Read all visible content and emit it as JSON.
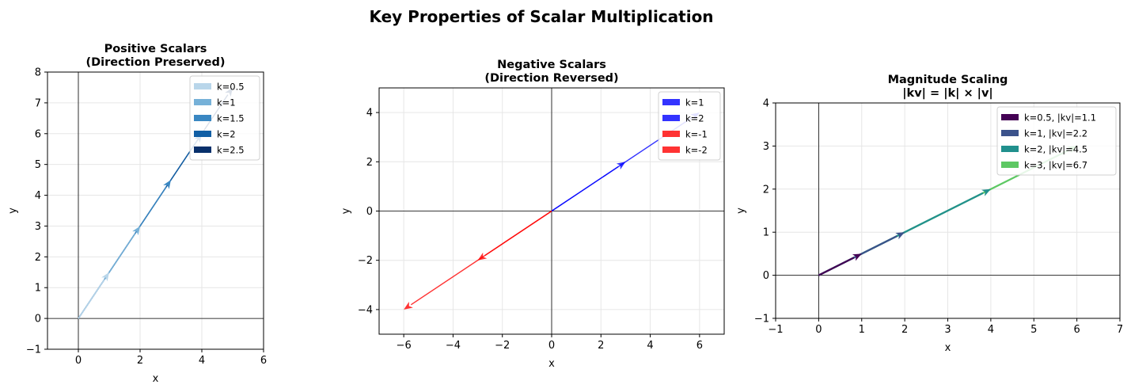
{
  "figure": {
    "title": "Key Properties of Scalar Multiplication"
  },
  "chart_data": [
    {
      "type": "vector",
      "title": "Positive Scalars\n(Direction Preserved)",
      "xlabel": "x",
      "ylabel": "y",
      "xlim": [
        -1,
        6
      ],
      "ylim": [
        -1,
        8
      ],
      "xticks": [
        0,
        2,
        4,
        6
      ],
      "yticks": [
        -1,
        0,
        1,
        2,
        3,
        4,
        5,
        6,
        7,
        8
      ],
      "grid": true,
      "legend": "top-right",
      "axis_lines": true,
      "series": [
        {
          "name": "k=0.5",
          "x": 1,
          "y": 1.5,
          "color": "#b9d6ea",
          "alpha": 1
        },
        {
          "name": "k=1",
          "x": 2,
          "y": 3,
          "color": "#76b1d8",
          "alpha": 1
        },
        {
          "name": "k=1.5",
          "x": 3,
          "y": 4.5,
          "color": "#3a87c2",
          "alpha": 1
        },
        {
          "name": "k=2",
          "x": 4,
          "y": 6,
          "color": "#115fa5",
          "alpha": 1
        },
        {
          "name": "k=2.5",
          "x": 5,
          "y": 7.5,
          "color": "#08306b",
          "alpha": 1
        }
      ]
    },
    {
      "type": "vector",
      "title": "Negative Scalars\n(Direction Reversed)",
      "xlabel": "x",
      "ylabel": "y",
      "xlim": [
        -7,
        7
      ],
      "ylim": [
        -5,
        5
      ],
      "xticks": [
        -6,
        -4,
        -2,
        0,
        2,
        4,
        6
      ],
      "yticks": [
        -4,
        -2,
        0,
        2,
        4
      ],
      "grid": true,
      "legend": "top-right",
      "axis_lines": true,
      "series": [
        {
          "name": "k=1",
          "x": 3,
          "y": 2,
          "color": "#0000ff",
          "alpha": 0.8
        },
        {
          "name": "k=2",
          "x": 6,
          "y": 4,
          "color": "#0000ff",
          "alpha": 0.8
        },
        {
          "name": "k=-1",
          "x": -3,
          "y": -2,
          "color": "#ff0000",
          "alpha": 0.8
        },
        {
          "name": "k=-2",
          "x": -6,
          "y": -4,
          "color": "#ff0000",
          "alpha": 0.8
        }
      ]
    },
    {
      "type": "vector",
      "title": "Magnitude Scaling\n|kv| = |k| × |v|",
      "xlabel": "x",
      "ylabel": "y",
      "xlim": [
        -1,
        7
      ],
      "ylim": [
        -1,
        4
      ],
      "xticks": [
        -1,
        0,
        1,
        2,
        3,
        4,
        5,
        6,
        7
      ],
      "yticks": [
        -1,
        0,
        1,
        2,
        3,
        4
      ],
      "grid": true,
      "legend": "top-right",
      "axis_lines": true,
      "series": [
        {
          "name": "k=0.5, |kv|=1.1",
          "x": 1,
          "y": 0.5,
          "color": "#440154",
          "alpha": 1
        },
        {
          "name": "k=1, |kv|=2.2",
          "x": 2,
          "y": 1,
          "color": "#3b528b",
          "alpha": 1
        },
        {
          "name": "k=2, |kv|=4.5",
          "x": 4,
          "y": 2,
          "color": "#21908d",
          "alpha": 1
        },
        {
          "name": "k=3, |kv|=6.7",
          "x": 6,
          "y": 3,
          "color": "#5dc863",
          "alpha": 1
        }
      ]
    }
  ]
}
